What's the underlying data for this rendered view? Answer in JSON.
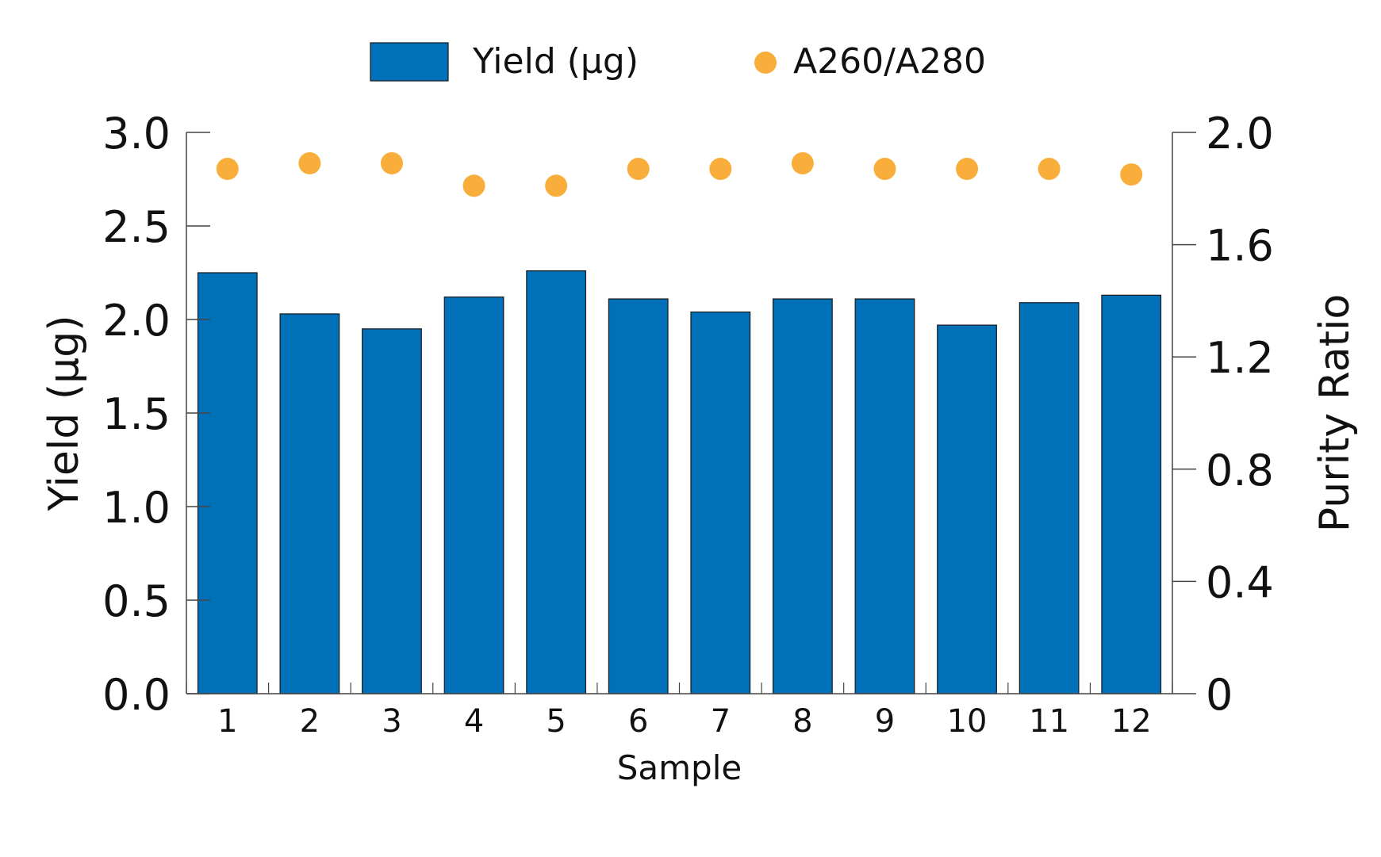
{
  "chart_data": {
    "type": "bar",
    "categories": [
      "1",
      "2",
      "3",
      "4",
      "5",
      "6",
      "7",
      "8",
      "9",
      "10",
      "11",
      "12"
    ],
    "xlabel": "Sample",
    "series": [
      {
        "name": "Yield (µg)",
        "type": "bar",
        "axis": "left",
        "color": "#0070b8",
        "values": [
          2.25,
          2.03,
          1.95,
          2.12,
          2.26,
          2.11,
          2.04,
          2.11,
          2.11,
          1.97,
          2.09,
          2.13
        ]
      },
      {
        "name": "A260/A280",
        "type": "scatter",
        "axis": "right",
        "color": "#f9ae3b",
        "values": [
          1.87,
          1.89,
          1.89,
          1.81,
          1.81,
          1.87,
          1.87,
          1.89,
          1.87,
          1.87,
          1.87,
          1.85
        ]
      }
    ],
    "y_left": {
      "label": "Yield (µg)",
      "ylim": [
        0,
        3.0
      ],
      "ticks": [
        "0.0",
        "0.5",
        "1.0",
        "1.5",
        "2.0",
        "2.5",
        "3.0"
      ]
    },
    "y_right": {
      "label": "Purity Ratio",
      "ylim": [
        0,
        2.0
      ],
      "ticks": [
        "0",
        "0.4",
        "0.8",
        "1.2",
        "1.6",
        "2.0"
      ]
    },
    "legend_position": "top-center",
    "grid": false
  }
}
